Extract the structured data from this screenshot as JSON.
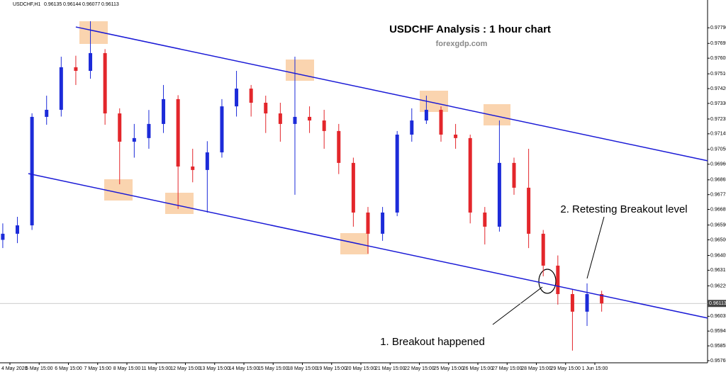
{
  "header": {
    "symbol": "USDCHF,H1",
    "ohlc": [
      0.96135,
      0.96144,
      0.96077,
      0.96113
    ]
  },
  "chart_data": {
    "type": "candlestick",
    "title": "USDCHF Analysis : 1 hour chart",
    "subtitle": "forexgdp.com",
    "x_labels": [
      "4 May 2020",
      "5 May 15:00",
      "6 May 15:00",
      "7 May 15:00",
      "8 May 15:00",
      "11 May 15:00",
      "12 May 15:00",
      "13 May 15:00",
      "14 May 15:00",
      "15 May 15:00",
      "18 May 15:00",
      "19 May 15:00",
      "20 May 15:00",
      "21 May 15:00",
      "22 May 15:00",
      "25 May 15:00",
      "26 May 15:00",
      "27 May 15:00",
      "28 May 15:00",
      "29 May 15:00",
      "1 Jun 15:00"
    ],
    "open": [
      0.965,
      0.96537,
      0.96588,
      0.97248,
      0.97291,
      0.9755,
      0.97528,
      0.97636,
      0.97269,
      0.97097,
      0.97119,
      0.97205,
      0.97356,
      0.96946,
      0.96925,
      0.97032,
      0.97312,
      0.9742,
      0.97334,
      0.97269,
      0.97205,
      0.97248,
      0.97226,
      0.97162,
      0.96968,
      0.96666,
      0.96537,
      0.96666,
      0.9714,
      0.97226,
      0.97291,
      0.9714,
      0.97119,
      0.96666,
      0.9658,
      0.96968,
      0.96817,
      0.96537,
      0.96343,
      0.9617,
      0.96063,
      0.9617
    ],
    "high": [
      0.966,
      0.9664,
      0.9727,
      0.97377,
      0.97614,
      0.9762,
      0.9783,
      0.9766,
      0.973,
      0.97205,
      0.9729,
      0.97442,
      0.9738,
      0.97054,
      0.971,
      0.97356,
      0.97528,
      0.97442,
      0.97377,
      0.97334,
      0.97614,
      0.97312,
      0.97291,
      0.97205,
      0.97,
      0.967,
      0.967,
      0.97162,
      0.973,
      0.97377,
      0.97312,
      0.97205,
      0.9714,
      0.967,
      0.97226,
      0.97,
      0.97054,
      0.9656,
      0.96405,
      0.962,
      0.96235,
      0.9619
    ],
    "low": [
      0.9645,
      0.9648,
      0.9656,
      0.972,
      0.9725,
      0.97442,
      0.9748,
      0.972,
      0.96838,
      0.97,
      0.97054,
      0.9715,
      0.96688,
      0.9685,
      0.96666,
      0.97,
      0.9725,
      0.9725,
      0.9715,
      0.97097,
      0.96774,
      0.9715,
      0.97054,
      0.969,
      0.9658,
      0.96416,
      0.96494,
      0.96644,
      0.97097,
      0.97205,
      0.97097,
      0.97054,
      0.966,
      0.96472,
      0.9655,
      0.96774,
      0.9645,
      0.96278,
      0.96106,
      0.95826,
      0.95976,
      0.96063
    ],
    "close": [
      0.96537,
      0.96588,
      0.97248,
      0.97291,
      0.9755,
      0.97528,
      0.97636,
      0.97269,
      0.97097,
      0.97119,
      0.97205,
      0.97356,
      0.96946,
      0.96925,
      0.97032,
      0.97312,
      0.9742,
      0.97334,
      0.97269,
      0.97205,
      0.97248,
      0.97226,
      0.97162,
      0.96968,
      0.96666,
      0.96537,
      0.96666,
      0.9714,
      0.97226,
      0.97291,
      0.9714,
      0.97119,
      0.96666,
      0.9658,
      0.96968,
      0.96817,
      0.96537,
      0.96343,
      0.9617,
      0.96063,
      0.9617,
      0.96113
    ],
    "up_color": "#1c2bd9",
    "down_color": "#e3262b",
    "xlim": [
      -0.19,
      48.25
    ],
    "ylim": [
      0.95752,
      0.97959
    ],
    "yticks": [
      {
        "value": 0.9779,
        "label": "0.97790"
      },
      0.97695,
      0.97605,
      {
        "value": 0.9751,
        "label": "0.97510"
      },
      {
        "value": 0.9742,
        "label": "0.97420"
      },
      {
        "value": 0.9733,
        "label": "0.97330"
      },
      0.97235,
      0.97145,
      {
        "value": 0.9705,
        "label": "0.97050"
      },
      {
        "value": 0.9696,
        "label": "0.96960"
      },
      0.96865,
      0.96775,
      0.96685,
      {
        "value": 0.9659,
        "label": "0.96590"
      },
      {
        "value": 0.965,
        "label": "0.96500"
      },
      0.96405,
      0.96315,
      {
        "value": 0.9622,
        "label": "0.96220"
      },
      0.96035,
      0.95945,
      0.95855,
      0.95765
    ],
    "current_price": 0.96113,
    "trendlines": [
      {
        "x": [
          5.0,
          48.25
        ],
        "y": [
          0.97795,
          0.96981
        ],
        "color": "#1a1ad6"
      },
      {
        "x": [
          1.75,
          48.25
        ],
        "y": [
          0.96903,
          0.96024
        ],
        "color": "#1a1ad6"
      }
    ],
    "annotations": [
      "1. Breakout happened",
      "2. Retesting Breakout level"
    ]
  }
}
